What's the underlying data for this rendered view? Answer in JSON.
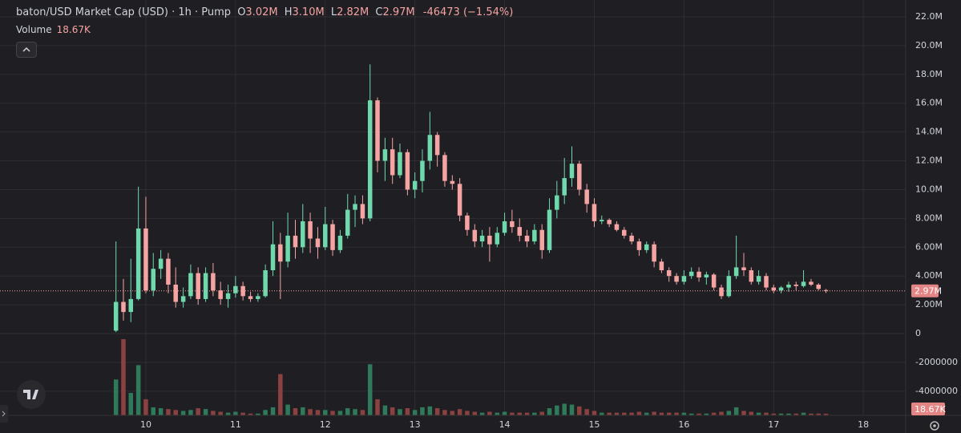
{
  "chart_data": {
    "type": "candlestick",
    "title": "baton/USD Market Cap (USD) · 1h · Pump",
    "legend": {
      "labels": [
        "O",
        "H",
        "L",
        "C"
      ],
      "values": [
        "3.02M",
        "3.10M",
        "2.82M",
        "2.97M"
      ],
      "change": "-46473 (−1.54%)",
      "volume_title": "Volume",
      "volume_value": "18.67K"
    },
    "x": [
      9.667,
      9.75,
      9.833,
      9.917,
      10,
      10.083,
      10.167,
      10.25,
      10.333,
      10.417,
      10.5,
      10.583,
      10.667,
      10.75,
      10.833,
      10.917,
      11,
      11.083,
      11.167,
      11.25,
      11.333,
      11.417,
      11.5,
      11.583,
      11.667,
      11.75,
      11.833,
      11.917,
      12,
      12.083,
      12.167,
      12.25,
      12.333,
      12.417,
      12.5,
      12.583,
      12.667,
      12.75,
      12.833,
      12.917,
      13,
      13.083,
      13.167,
      13.25,
      13.333,
      13.417,
      13.5,
      13.583,
      13.667,
      13.75,
      13.833,
      13.917,
      14,
      14.083,
      14.167,
      14.25,
      14.333,
      14.417,
      14.5,
      14.583,
      14.667,
      14.75,
      14.833,
      14.917,
      15,
      15.083,
      15.167,
      15.25,
      15.333,
      15.417,
      15.5,
      15.583,
      15.667,
      15.75,
      15.833,
      15.917,
      16,
      16.083,
      16.167,
      16.25,
      16.333,
      16.417,
      16.5,
      16.583,
      16.667,
      16.75,
      16.833,
      16.917,
      17,
      17.083,
      17.167,
      17.25,
      17.333,
      17.417,
      17.5,
      17.583
    ],
    "open": [
      200000,
      2200000,
      1500000,
      2400000,
      7300000,
      3000000,
      4500000,
      5200000,
      3400000,
      2200000,
      2600000,
      4200000,
      2400000,
      4200000,
      3000000,
      2400000,
      2800000,
      3300000,
      2600000,
      2400000,
      2600000,
      4400000,
      6200000,
      5000000,
      6800000,
      6000000,
      7800000,
      6600000,
      6000000,
      7600000,
      5800000,
      6800000,
      8600000,
      9000000,
      8000000,
      16200000,
      12000000,
      12800000,
      11000000,
      12600000,
      10000000,
      10600000,
      12000000,
      13800000,
      12400000,
      10600000,
      10400000,
      8200000,
      7200000,
      6400000,
      6800000,
      6200000,
      7000000,
      7800000,
      7400000,
      6800000,
      6400000,
      7200000,
      5800000,
      8600000,
      9600000,
      10800000,
      11800000,
      10000000,
      9000000,
      7800000,
      7900000,
      7600000,
      7200000,
      6800000,
      6400000,
      5800000,
      6200000,
      5000000,
      4400000,
      4000000,
      3600000,
      4000000,
      4300000,
      3900000,
      4100000,
      3200000,
      2600000,
      4000000,
      4600000,
      4400000,
      3600000,
      4000000,
      3200000,
      3000000,
      3200000,
      3400000,
      3300000,
      3600000,
      3400000,
      3020000
    ],
    "high": [
      6400000,
      3800000,
      5200000,
      10200000,
      9500000,
      5600000,
      5800000,
      5600000,
      4600000,
      3200000,
      4800000,
      4600000,
      4600000,
      4900000,
      3600000,
      3400000,
      4000000,
      3600000,
      2900000,
      2800000,
      4800000,
      7800000,
      7000000,
      8400000,
      7900000,
      9000000,
      8400000,
      7400000,
      8800000,
      7900000,
      7200000,
      9700000,
      9600000,
      9600000,
      18700000,
      16400000,
      13600000,
      13600000,
      13200000,
      12800000,
      11200000,
      12800000,
      15400000,
      14000000,
      12600000,
      11000000,
      10800000,
      8400000,
      7600000,
      7200000,
      7400000,
      7400000,
      8400000,
      8600000,
      8000000,
      7200000,
      7600000,
      7600000,
      9400000,
      10600000,
      12200000,
      13000000,
      12000000,
      10400000,
      9400000,
      8200000,
      8000000,
      7800000,
      7400000,
      7000000,
      6600000,
      6400000,
      6400000,
      5200000,
      4600000,
      4200000,
      4400000,
      4600000,
      4600000,
      4300000,
      4200000,
      3400000,
      4400000,
      6800000,
      5600000,
      4600000,
      4400000,
      4200000,
      3400000,
      3300000,
      3600000,
      3600000,
      4400000,
      3800000,
      3500000,
      3100000
    ],
    "low": [
      100000,
      900000,
      800000,
      2300000,
      2800000,
      2600000,
      3800000,
      2800000,
      1800000,
      1800000,
      2400000,
      2000000,
      2200000,
      2600000,
      2000000,
      1800000,
      2500000,
      2300000,
      2200000,
      2200000,
      2500000,
      4000000,
      2400000,
      4600000,
      5200000,
      5600000,
      5600000,
      5200000,
      5800000,
      5400000,
      5600000,
      6600000,
      7400000,
      7600000,
      7800000,
      11200000,
      10600000,
      10400000,
      10800000,
      9600000,
      9400000,
      9800000,
      11400000,
      11600000,
      10200000,
      10000000,
      7800000,
      6800000,
      6000000,
      6000000,
      5000000,
      6000000,
      6800000,
      7000000,
      6400000,
      6000000,
      6200000,
      5200000,
      5600000,
      8000000,
      9000000,
      10200000,
      9600000,
      8400000,
      7400000,
      7600000,
      7400000,
      7100000,
      6600000,
      6200000,
      5400000,
      5600000,
      4600000,
      4200000,
      3600000,
      3400000,
      3400000,
      3800000,
      3600000,
      3400000,
      3000000,
      2400000,
      2500000,
      3800000,
      4000000,
      3400000,
      3400000,
      3000000,
      2800000,
      2800000,
      2900000,
      3000000,
      3200000,
      3300000,
      3000000,
      2820000
    ],
    "close": [
      2200000,
      1500000,
      2400000,
      7300000,
      3000000,
      4500000,
      5200000,
      3400000,
      2200000,
      2600000,
      4200000,
      2400000,
      4200000,
      3000000,
      2400000,
      2800000,
      3300000,
      2600000,
      2400000,
      2600000,
      4400000,
      6200000,
      5000000,
      6800000,
      6000000,
      7800000,
      6600000,
      6000000,
      7600000,
      5800000,
      6800000,
      8600000,
      9000000,
      8000000,
      16200000,
      12000000,
      12800000,
      11000000,
      12600000,
      10000000,
      10600000,
      12000000,
      13800000,
      12400000,
      10600000,
      10400000,
      8200000,
      7200000,
      6400000,
      6800000,
      6200000,
      7000000,
      7800000,
      7400000,
      6800000,
      6400000,
      7200000,
      5800000,
      8600000,
      9600000,
      10800000,
      11800000,
      10000000,
      9000000,
      7800000,
      7900000,
      7600000,
      7200000,
      6800000,
      6400000,
      5800000,
      6200000,
      5000000,
      4400000,
      4000000,
      3600000,
      4000000,
      4300000,
      3900000,
      4100000,
      3200000,
      2600000,
      4000000,
      4600000,
      4400000,
      3600000,
      4000000,
      3200000,
      3000000,
      3200000,
      3400000,
      3300000,
      3600000,
      3400000,
      3100000,
      2970000
    ],
    "volume": [
      400000,
      850000,
      250000,
      560000,
      180000,
      90000,
      80000,
      70000,
      60000,
      50000,
      60000,
      80000,
      70000,
      50000,
      40000,
      30000,
      40000,
      30000,
      20000,
      20000,
      60000,
      90000,
      460000,
      120000,
      80000,
      90000,
      70000,
      60000,
      60000,
      50000,
      50000,
      80000,
      70000,
      60000,
      570000,
      180000,
      110000,
      90000,
      70000,
      80000,
      60000,
      90000,
      100000,
      80000,
      60000,
      50000,
      70000,
      50000,
      40000,
      30000,
      40000,
      30000,
      40000,
      30000,
      30000,
      30000,
      30000,
      40000,
      80000,
      110000,
      130000,
      120000,
      100000,
      70000,
      50000,
      30000,
      30000,
      30000,
      30000,
      30000,
      40000,
      30000,
      40000,
      30000,
      30000,
      30000,
      30000,
      20000,
      20000,
      20000,
      30000,
      40000,
      50000,
      90000,
      50000,
      40000,
      30000,
      30000,
      20000,
      20000,
      20000,
      20000,
      30000,
      20000,
      20000,
      18670
    ],
    "up_color": "#6fd9ad",
    "down_color": "#f5a3a3",
    "volume_up_color": "#2f7a5a",
    "volume_down_color": "#8c4141",
    "xlim": [
      8.374,
      18.472
    ],
    "xticks": [
      10,
      11,
      12,
      13,
      14,
      15,
      16,
      17,
      18
    ],
    "ylim": [
      -5680000,
      23170000
    ],
    "yticks": [
      {
        "value": 22000000,
        "label": "22.0M"
      },
      {
        "value": 20000000,
        "label": "20.0M"
      },
      {
        "value": 18000000,
        "label": "18.0M"
      },
      {
        "value": 16000000,
        "label": "16.0M"
      },
      {
        "value": 14000000,
        "label": "14.0M"
      },
      {
        "value": 12000000,
        "label": "12.0M"
      },
      {
        "value": 10000000,
        "label": "10.0M"
      },
      {
        "value": 8000000,
        "label": "8.00M"
      },
      {
        "value": 6000000,
        "label": "6.00M"
      },
      {
        "value": 4000000,
        "label": "4.00M"
      },
      {
        "value": 2000000,
        "label": "2.00M"
      },
      0,
      -2000000,
      -4000000
    ],
    "grid": true
  }
}
